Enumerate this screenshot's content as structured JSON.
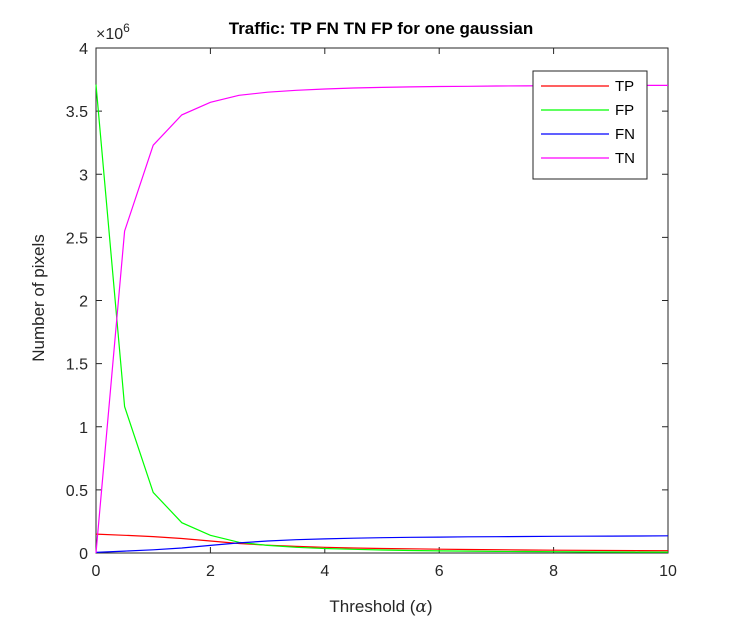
{
  "chart_data": {
    "type": "line",
    "title": "Traffic: TP FN TN FP for one gaussian",
    "xlabel_text": "Threshold (",
    "xlabel_symbol": "α",
    "xlabel_close": ")",
    "ylabel": "Number of pixels",
    "exponent_prefix": "×10",
    "exponent_power": "6",
    "xlim": [
      0,
      10
    ],
    "ylim": [
      0,
      4000000
    ],
    "xticks": [
      0,
      2,
      4,
      6,
      8,
      10
    ],
    "yticks": [
      0,
      500000,
      1000000,
      1500000,
      2000000,
      2500000,
      3000000,
      3500000,
      4000000
    ],
    "ytick_labels": [
      "0",
      "0.5",
      "1",
      "1.5",
      "2",
      "2.5",
      "3",
      "3.5",
      "4"
    ],
    "grid": false,
    "legend_position": "top-right",
    "x": [
      0,
      0.5,
      1,
      1.5,
      2,
      2.5,
      3,
      3.5,
      4,
      4.5,
      5,
      5.5,
      6,
      6.5,
      7,
      7.5,
      8,
      8.5,
      9,
      9.5,
      10
    ],
    "series": [
      {
        "name": "TP",
        "color": "#ff0000",
        "values": [
          150000,
          140000,
          130000,
          115000,
          95000,
          75000,
          62000,
          52000,
          45000,
          40000,
          36000,
          33000,
          30000,
          28000,
          26000,
          24000,
          22000,
          21000,
          20000,
          19000,
          18000
        ]
      },
      {
        "name": "FP",
        "color": "#00ff00",
        "values": [
          3710000,
          1160000,
          480000,
          240000,
          140000,
          85000,
          60000,
          45000,
          36000,
          29000,
          24000,
          20000,
          17000,
          15000,
          13000,
          11500,
          10000,
          9000,
          8000,
          7500,
          7000
        ]
      },
      {
        "name": "FN",
        "color": "#0000ff",
        "values": [
          5000,
          15000,
          25000,
          40000,
          60000,
          80000,
          95000,
          105000,
          112000,
          117000,
          121000,
          124000,
          126000,
          128000,
          129500,
          131000,
          132000,
          133000,
          134000,
          135000,
          136000
        ]
      },
      {
        "name": "TN",
        "color": "#ff00ff",
        "values": [
          0,
          2550000,
          3230000,
          3470000,
          3570000,
          3625000,
          3650000,
          3665000,
          3675000,
          3683000,
          3688000,
          3692000,
          3695000,
          3697000,
          3699000,
          3700000,
          3701000,
          3702000,
          3703000,
          3703500,
          3704000
        ]
      }
    ]
  }
}
